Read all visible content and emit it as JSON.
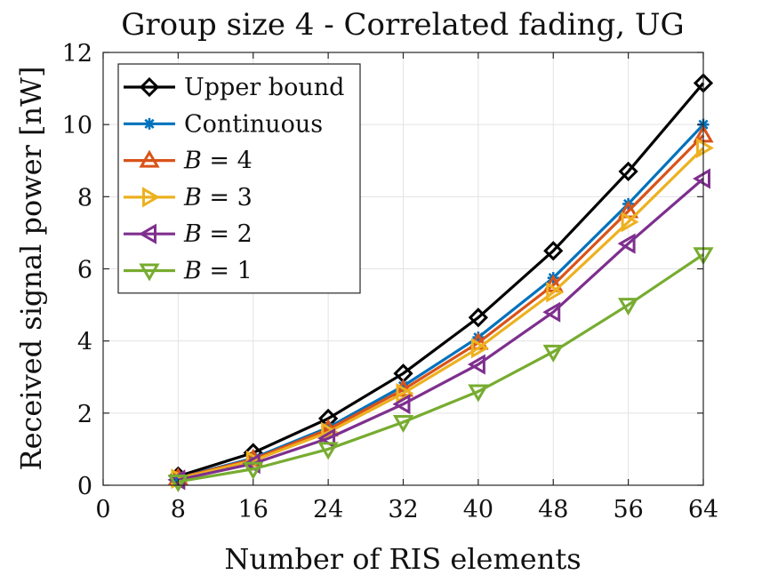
{
  "chart_data": {
    "type": "line",
    "title": "Group size 4 - Correlated fading, UG",
    "xlabel": "Number of RIS elements",
    "ylabel": "Received signal power [nW]",
    "xlim": [
      0,
      64
    ],
    "ylim": [
      0,
      12
    ],
    "xticks": [
      0,
      8,
      16,
      24,
      32,
      40,
      48,
      56,
      64
    ],
    "yticks": [
      0,
      2,
      4,
      6,
      8,
      10,
      12
    ],
    "grid": true,
    "legend_position": "top-left",
    "x": [
      8,
      16,
      24,
      32,
      40,
      48,
      56,
      64
    ],
    "series": [
      {
        "name": "Upper bound",
        "label_parts": [
          {
            "text": "Upper bound",
            "italic": false
          }
        ],
        "color": "#000000",
        "marker": "diamond",
        "values": [
          0.25,
          0.9,
          1.85,
          3.1,
          4.65,
          6.5,
          8.7,
          11.15
        ]
      },
      {
        "name": "Continuous",
        "label_parts": [
          {
            "text": "Continuous",
            "italic": false
          }
        ],
        "color": "#0072BD",
        "marker": "asterisk",
        "values": [
          0.2,
          0.75,
          1.6,
          2.75,
          4.1,
          5.75,
          7.8,
          10.0
        ]
      },
      {
        "name": "B = 4",
        "label_parts": [
          {
            "text": "B",
            "italic": true
          },
          {
            "text": " = 4",
            "italic": false
          }
        ],
        "color": "#D95319",
        "marker": "triangle-up",
        "values": [
          0.2,
          0.72,
          1.55,
          2.65,
          3.95,
          5.55,
          7.6,
          9.7
        ]
      },
      {
        "name": "B = 3",
        "label_parts": [
          {
            "text": "B",
            "italic": true
          },
          {
            "text": " = 3",
            "italic": false
          }
        ],
        "color": "#EDB120",
        "marker": "triangle-right",
        "values": [
          0.18,
          0.68,
          1.47,
          2.55,
          3.8,
          5.35,
          7.3,
          9.35
        ]
      },
      {
        "name": "B = 2",
        "label_parts": [
          {
            "text": "B",
            "italic": true
          },
          {
            "text": " = 2",
            "italic": false
          }
        ],
        "color": "#7E2F8E",
        "marker": "triangle-left",
        "values": [
          0.15,
          0.6,
          1.3,
          2.25,
          3.35,
          4.8,
          6.7,
          8.5
        ]
      },
      {
        "name": "B = 1",
        "label_parts": [
          {
            "text": "B",
            "italic": true
          },
          {
            "text": " = 1",
            "italic": false
          }
        ],
        "color": "#77AC30",
        "marker": "triangle-down",
        "values": [
          0.1,
          0.45,
          1.0,
          1.75,
          2.6,
          3.7,
          5.0,
          6.4
        ]
      }
    ]
  }
}
